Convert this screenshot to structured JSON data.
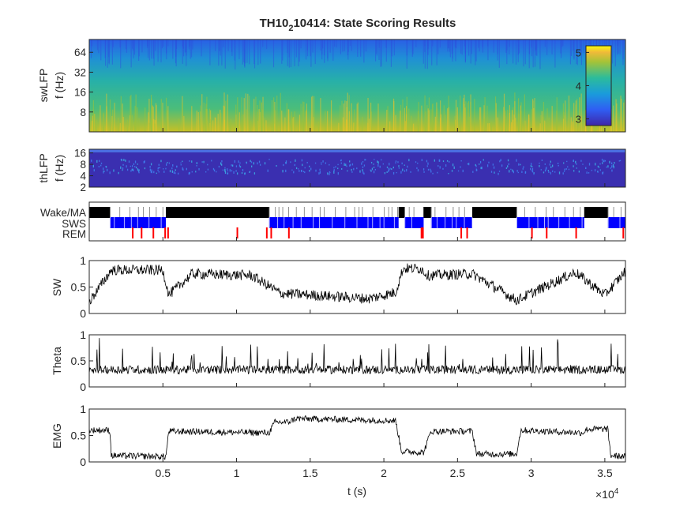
{
  "figure": {
    "title_prefix": "TH10",
    "title_sub": "2",
    "title_suffix": "10414: State Scoring Results",
    "xlabel": "t (s)",
    "x_exponent_base": "×10",
    "x_exponent_power": "4"
  },
  "chart_data": [
    {
      "id": "swlfp",
      "type": "heatmap",
      "ylabel_1": "swLFP",
      "ylabel_2": "f (Hz)",
      "yticks": [
        "64",
        "32",
        "16",
        "8"
      ],
      "y_scale": "log2",
      "ylim_hz": [
        4,
        100
      ],
      "xlim": [
        0,
        36400
      ],
      "colorbar": {
        "ticks": [
          "5",
          "4",
          "3"
        ],
        "range": [
          2.8,
          5.2
        ],
        "colormap": "parula"
      },
      "description_colors": {
        "low": "#3e26a8",
        "high": "#f9fb0e"
      }
    },
    {
      "id": "thlfp",
      "type": "heatmap",
      "ylabel_1": "thLFP",
      "ylabel_2": "f (Hz)",
      "yticks": [
        "16",
        "8",
        "4",
        "2"
      ],
      "y_scale": "log2",
      "ylim_hz": [
        2,
        20
      ],
      "xlim": [
        0,
        36400
      ]
    },
    {
      "id": "states",
      "type": "hypnogram",
      "categories": [
        "Wake/MA",
        "SWS",
        "REM"
      ],
      "colors": {
        "Wake/MA": "#000000",
        "SWS": "#0000ff",
        "REM": "#ff0000"
      },
      "xlim": [
        0,
        36400
      ],
      "wake_bouts_s": [
        [
          0,
          1400
        ],
        [
          5200,
          12200
        ],
        [
          21000,
          21400
        ],
        [
          22700,
          23200
        ],
        [
          26000,
          29000
        ],
        [
          33600,
          35200
        ]
      ],
      "sws_bouts_s": [
        [
          1400,
          5200
        ],
        [
          12200,
          21000
        ],
        [
          21400,
          22700
        ],
        [
          23200,
          26000
        ],
        [
          29000,
          33600
        ],
        [
          35200,
          36400
        ]
      ],
      "rem_events_s": [
        2900,
        3500,
        4300,
        5100,
        5300,
        10000,
        12000,
        12300,
        13500,
        22500,
        22600,
        25200,
        25600,
        30000,
        31000,
        33000,
        36200
      ]
    },
    {
      "id": "sw",
      "type": "line",
      "ylabel": "SW",
      "yticks": [
        "1",
        "0.5",
        "0"
      ],
      "ylim": [
        0,
        1
      ],
      "xlim": [
        0,
        36400
      ],
      "levels_x": [
        0,
        1500,
        5000,
        5400,
        7000,
        11000,
        13000,
        15000,
        19000,
        20800,
        21300,
        22500,
        23000,
        26000,
        29000,
        33000,
        35000,
        36400
      ],
      "levels_y": [
        0.22,
        0.82,
        0.82,
        0.35,
        0.75,
        0.72,
        0.38,
        0.35,
        0.28,
        0.4,
        0.85,
        0.85,
        0.72,
        0.75,
        0.25,
        0.78,
        0.35,
        0.8
      ],
      "noise": 0.1
    },
    {
      "id": "theta",
      "type": "line",
      "ylabel": "Theta",
      "yticks": [
        "1",
        "0.5",
        "0"
      ],
      "ylim": [
        0,
        1
      ],
      "xlim": [
        0,
        36400
      ],
      "levels_x": [
        0,
        36400
      ],
      "levels_y": [
        0.33,
        0.33
      ],
      "noise": 0.08
    },
    {
      "id": "emg",
      "type": "line",
      "ylabel": "EMG",
      "yticks": [
        "1",
        "0.5",
        "0"
      ],
      "ylim": [
        0,
        1
      ],
      "xlim": [
        0,
        36400
      ],
      "levels_x": [
        0,
        1400,
        1500,
        5200,
        5400,
        12200,
        12600,
        13500,
        14000,
        20800,
        21200,
        22700,
        23200,
        26000,
        26300,
        29000,
        29300,
        33500,
        33800,
        35200,
        35400,
        36400
      ],
      "levels_y": [
        0.6,
        0.6,
        0.12,
        0.1,
        0.58,
        0.55,
        0.75,
        0.75,
        0.82,
        0.78,
        0.2,
        0.18,
        0.58,
        0.58,
        0.15,
        0.15,
        0.6,
        0.55,
        0.62,
        0.62,
        0.12,
        0.1
      ],
      "noise": 0.06
    }
  ],
  "x_axis": {
    "ticks": [
      5000,
      10000,
      15000,
      20000,
      25000,
      30000,
      35000
    ],
    "tick_labels": [
      "0.5",
      "1",
      "1.5",
      "2",
      "2.5",
      "3",
      "3.5"
    ]
  }
}
